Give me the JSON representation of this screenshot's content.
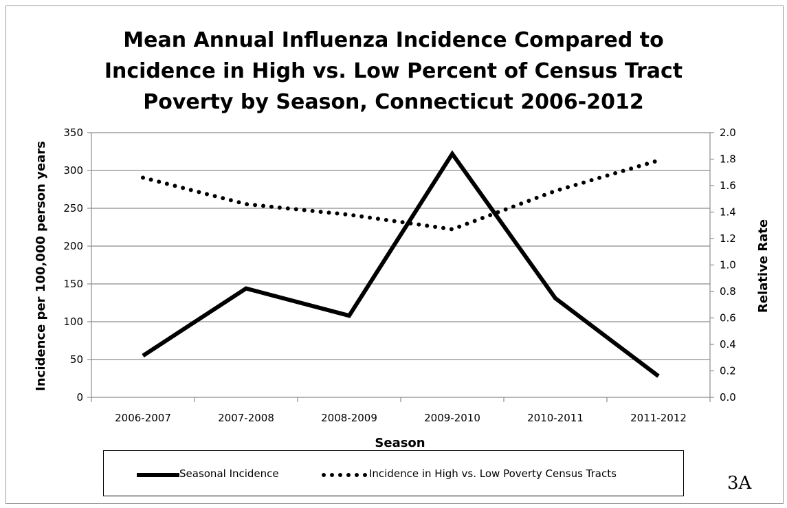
{
  "figure_label": "3A",
  "chart_data": {
    "type": "line",
    "title_lines": [
      "Mean Annual Influenza Incidence Compared to",
      "Incidence in High vs. Low Percent of Census Tract",
      "Poverty by Season, Connecticut 2006-2012"
    ],
    "xlabel": "Season",
    "ylabel": "Incidence per 100,000 person years",
    "y2label": "Relative Rate",
    "categories": [
      "2006-2007",
      "2007-2008",
      "2008-2009",
      "2009-2010",
      "2010-2011",
      "2011-2012"
    ],
    "ylim": [
      0,
      350
    ],
    "y_ticks": [
      0,
      50,
      100,
      150,
      200,
      250,
      300,
      350
    ],
    "y2lim": [
      0,
      2.0
    ],
    "y2_ticks": [
      "0.0",
      "0.2",
      "0.4",
      "0.6",
      "0.8",
      "1.0",
      "1.2",
      "1.4",
      "1.6",
      "1.8",
      "2.0"
    ],
    "grid": "horizontal",
    "legend_position": "bottom",
    "series": [
      {
        "name": "Seasonal Incidence",
        "axis": "left",
        "style": "solid",
        "color": "#000000",
        "values": [
          55,
          144,
          108,
          322,
          131,
          28
        ]
      },
      {
        "name": "Incidence in High vs. Low Poverty Census Tracts",
        "axis": "right",
        "style": "dotted",
        "color": "#000000",
        "values": [
          1.66,
          1.46,
          1.38,
          1.27,
          1.56,
          1.79
        ]
      }
    ]
  }
}
